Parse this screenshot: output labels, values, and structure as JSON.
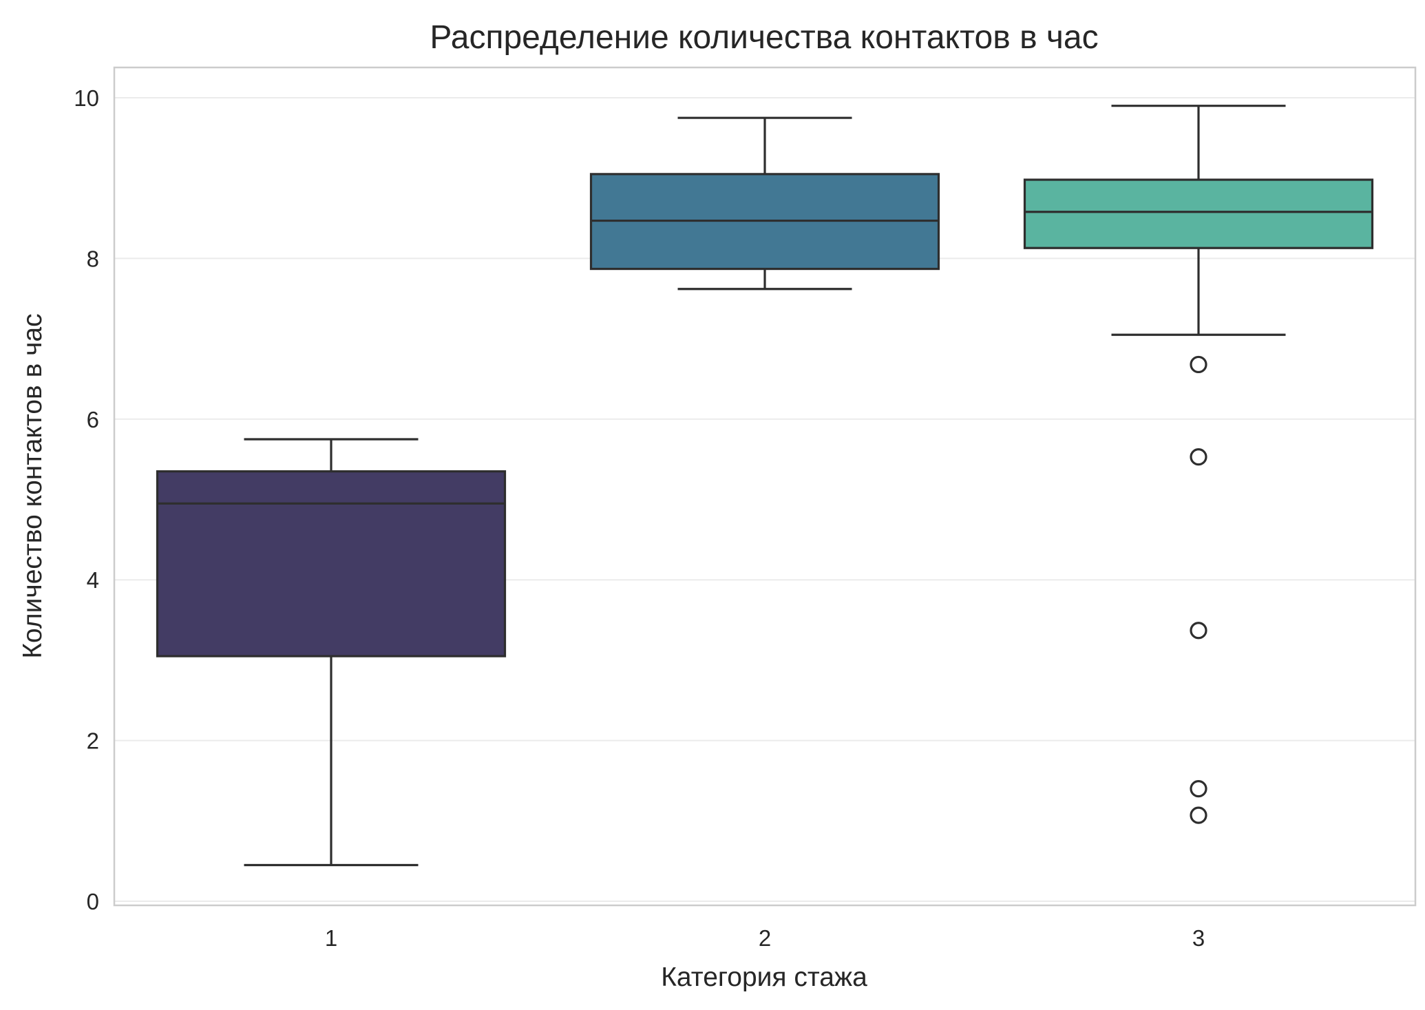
{
  "chart_data": {
    "type": "box",
    "title": "Распределение количества контактов в час",
    "xlabel": "Категория стажа",
    "ylabel": "Количество контактов в час",
    "categories": [
      "1",
      "2",
      "3"
    ],
    "ylim": [
      0,
      10.4
    ],
    "yticks": [
      0,
      2,
      4,
      6,
      8,
      10
    ],
    "grid": true,
    "boxes": [
      {
        "category": "1",
        "whisker_low": 0.45,
        "q1": 3.05,
        "median": 4.95,
        "q3": 5.35,
        "whisker_high": 5.75,
        "outliers": [],
        "color": "#433C64"
      },
      {
        "category": "2",
        "whisker_low": 7.62,
        "q1": 7.87,
        "median": 8.47,
        "q3": 9.05,
        "whisker_high": 9.75,
        "outliers": [],
        "color": "#427894"
      },
      {
        "category": "3",
        "whisker_low": 7.05,
        "q1": 8.13,
        "median": 8.58,
        "q3": 8.98,
        "whisker_high": 9.9,
        "outliers": [
          6.68,
          5.53,
          3.37,
          1.4,
          1.07
        ],
        "color": "#5AB4A0"
      }
    ],
    "colors": {
      "edge": "#2E2E2E",
      "grid": "#EBEBEB",
      "frame": "#CCCCCC",
      "text": "#262626"
    }
  }
}
